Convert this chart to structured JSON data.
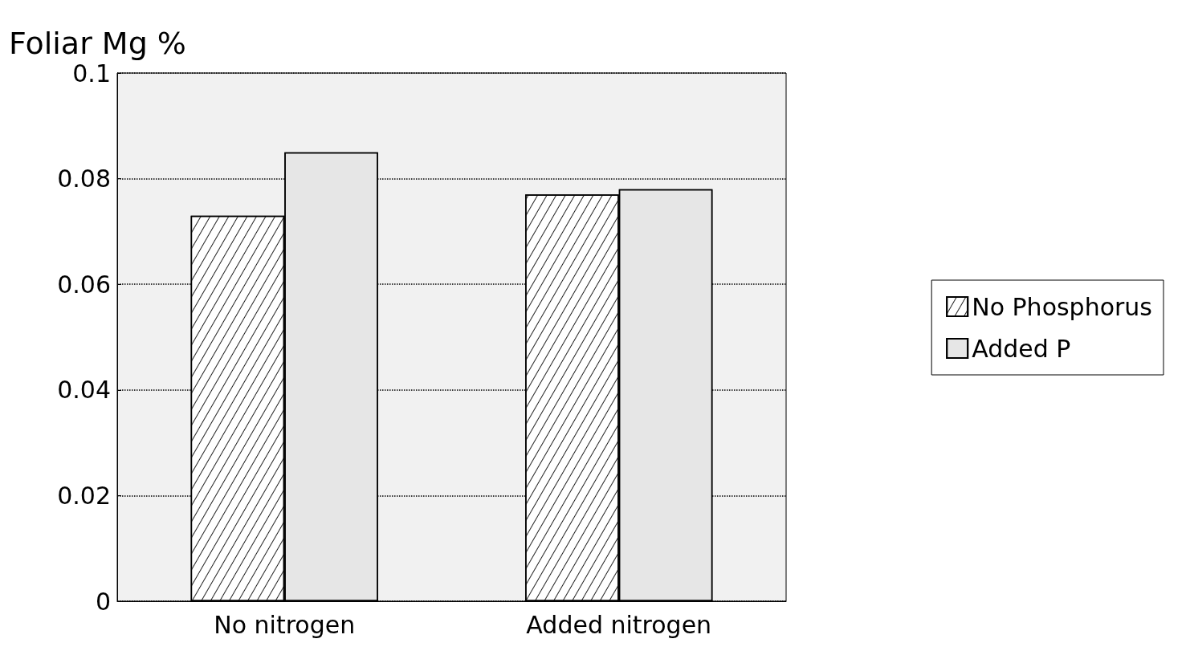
{
  "chart_data": {
    "type": "bar",
    "ylabel": "Foliar Mg %",
    "categories": [
      "No nitrogen",
      "Added nitrogen"
    ],
    "series": [
      {
        "name": "No Phosphorus",
        "color": "#ffffff",
        "values": [
          0.073,
          0.077
        ]
      },
      {
        "name": "Added P",
        "color": "#e6e6e6",
        "values": [
          0.085,
          0.078
        ]
      }
    ],
    "ylim": [
      0,
      0.1
    ],
    "yticks": [
      0,
      0.02,
      0.04,
      0.06,
      0.08,
      0.1
    ],
    "grid": "y",
    "legend": "right"
  }
}
